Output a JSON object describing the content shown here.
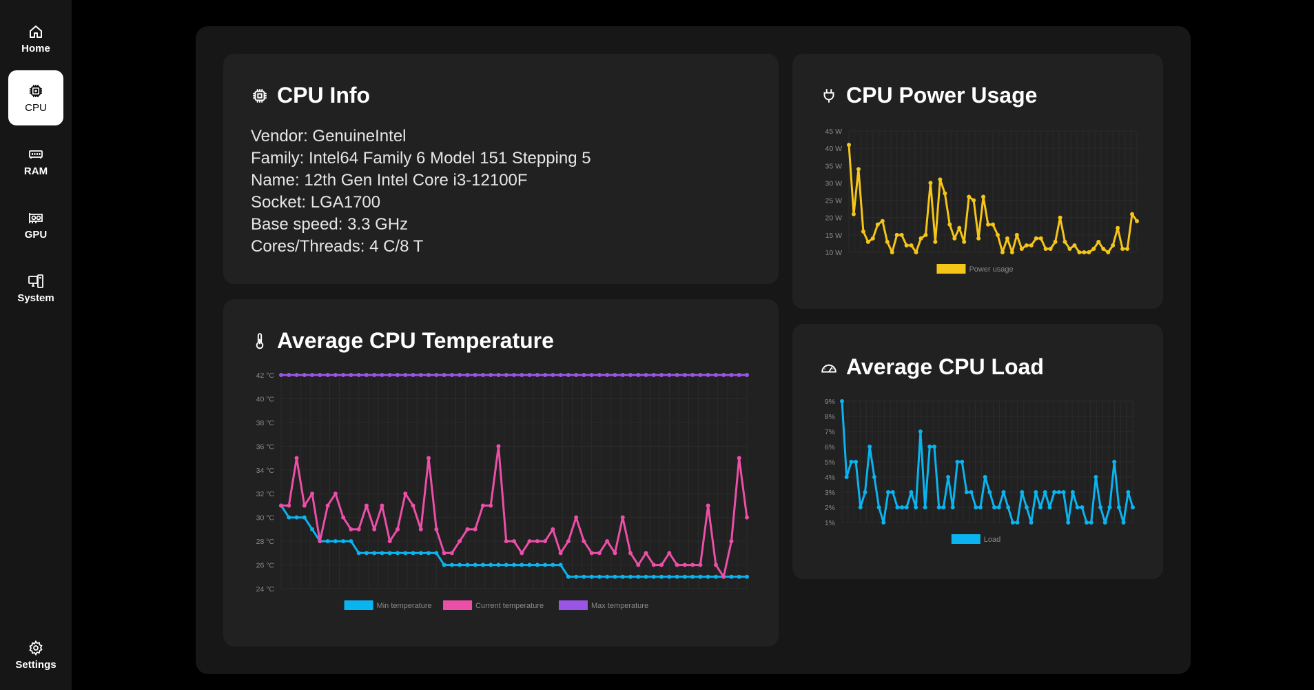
{
  "sidebar": {
    "items": [
      {
        "label": "Home",
        "icon": "home-icon",
        "active": false
      },
      {
        "label": "CPU",
        "icon": "cpu-icon",
        "active": true
      },
      {
        "label": "RAM",
        "icon": "ram-icon",
        "active": false
      },
      {
        "label": "GPU",
        "icon": "gpu-icon",
        "active": false
      },
      {
        "label": "System",
        "icon": "system-icon",
        "active": false
      }
    ],
    "settings": {
      "label": "Settings",
      "icon": "gear-icon"
    }
  },
  "cpu_info": {
    "title": "CPU Info",
    "lines": [
      "Vendor: GenuineIntel",
      "Family: Intel64 Family 6 Model 151 Stepping 5",
      "Name: 12th Gen Intel Core i3-12100F",
      "Socket: LGA1700",
      "Base speed: 3.3 GHz",
      "Cores/Threads: 4 C/8 T"
    ]
  },
  "power_card": {
    "title": "CPU Power Usage"
  },
  "temp_card": {
    "title": "Average CPU Temperature"
  },
  "load_card": {
    "title": "Average CPU Load"
  },
  "colors": {
    "power": "#f5c518",
    "min_temp": "#0ab4f0",
    "cur_temp": "#ec4fa8",
    "max_temp": "#9b55e6",
    "load": "#0ab4f0",
    "grid": "#2b2b2b",
    "tick": "#8a8a8a"
  },
  "chart_data": [
    {
      "id": "power",
      "type": "line",
      "ylim": [
        10,
        45
      ],
      "ytick_values": [
        10,
        15,
        20,
        25,
        30,
        35,
        40,
        45
      ],
      "ytick_labels": [
        "10 W",
        "15 W",
        "20 W",
        "25 W",
        "30 W",
        "35 W",
        "40 W",
        "45 W"
      ],
      "legend_position": "bottom",
      "grid": true,
      "series": [
        {
          "name": "Power usage",
          "values": [
            41,
            21,
            34,
            16,
            13,
            14,
            18,
            19,
            13,
            10,
            15,
            15,
            12,
            12,
            10,
            14,
            15,
            30,
            13,
            31,
            27,
            18,
            14,
            17,
            13,
            26,
            25,
            14,
            26,
            18,
            18,
            15,
            10,
            14,
            10,
            15,
            11,
            12,
            12,
            14,
            14,
            11,
            11,
            13,
            20,
            13,
            11,
            12,
            10,
            10,
            10,
            11,
            13,
            11,
            10,
            12,
            17,
            11,
            11,
            21,
            19
          ]
        }
      ]
    },
    {
      "id": "temperature",
      "type": "line",
      "ylim": [
        24,
        42
      ],
      "ytick_values": [
        24,
        26,
        28,
        30,
        32,
        34,
        36,
        38,
        40,
        42
      ],
      "ytick_labels": [
        "24 °C",
        "26 °C",
        "28 °C",
        "30 °C",
        "32 °C",
        "34 °C",
        "36 °C",
        "38 °C",
        "40 °C",
        "42 °C"
      ],
      "legend_position": "bottom",
      "grid": true,
      "series": [
        {
          "name": "Min temperature",
          "values": [
            31,
            30,
            30,
            30,
            29,
            28,
            28,
            28,
            28,
            28,
            27,
            27,
            27,
            27,
            27,
            27,
            27,
            27,
            27,
            27,
            27,
            26,
            26,
            26,
            26,
            26,
            26,
            26,
            26,
            26,
            26,
            26,
            26,
            26,
            26,
            26,
            26,
            25,
            25,
            25,
            25,
            25,
            25,
            25,
            25,
            25,
            25,
            25,
            25,
            25,
            25,
            25,
            25,
            25,
            25,
            25,
            25,
            25,
            25,
            25,
            25
          ]
        },
        {
          "name": "Current temperature",
          "values": [
            31,
            31,
            35,
            31,
            32,
            28,
            31,
            32,
            30,
            29,
            29,
            31,
            29,
            31,
            28,
            29,
            32,
            31,
            29,
            35,
            29,
            27,
            27,
            28,
            29,
            29,
            31,
            31,
            36,
            28,
            28,
            27,
            28,
            28,
            28,
            29,
            27,
            28,
            30,
            28,
            27,
            27,
            28,
            27,
            30,
            27,
            26,
            27,
            26,
            26,
            27,
            26,
            26,
            26,
            26,
            31,
            26,
            25,
            28,
            35,
            30
          ]
        },
        {
          "name": "Max temperature",
          "values": [
            42,
            42,
            42,
            42,
            42,
            42,
            42,
            42,
            42,
            42,
            42,
            42,
            42,
            42,
            42,
            42,
            42,
            42,
            42,
            42,
            42,
            42,
            42,
            42,
            42,
            42,
            42,
            42,
            42,
            42,
            42,
            42,
            42,
            42,
            42,
            42,
            42,
            42,
            42,
            42,
            42,
            42,
            42,
            42,
            42,
            42,
            42,
            42,
            42,
            42,
            42,
            42,
            42,
            42,
            42,
            42,
            42,
            42,
            42,
            42,
            42
          ]
        }
      ]
    },
    {
      "id": "load",
      "type": "line",
      "ylim": [
        1,
        9
      ],
      "ytick_values": [
        1,
        2,
        3,
        4,
        5,
        6,
        7,
        8,
        9
      ],
      "ytick_labels": [
        "1%",
        "2%",
        "3%",
        "4%",
        "5%",
        "6%",
        "7%",
        "8%",
        "9%"
      ],
      "legend_position": "bottom",
      "grid": true,
      "series": [
        {
          "name": "Load",
          "values": [
            9,
            4,
            5,
            5,
            2,
            3,
            6,
            4,
            2,
            1,
            3,
            3,
            2,
            2,
            2,
            3,
            2,
            7,
            2,
            6,
            6,
            2,
            2,
            4,
            2,
            5,
            5,
            3,
            3,
            2,
            2,
            4,
            3,
            2,
            2,
            3,
            2,
            1,
            1,
            3,
            2,
            1,
            3,
            2,
            3,
            2,
            3,
            3,
            3,
            1,
            3,
            2,
            2,
            1,
            1,
            4,
            2,
            1,
            2,
            5,
            2,
            1,
            3,
            2
          ]
        }
      ]
    }
  ]
}
